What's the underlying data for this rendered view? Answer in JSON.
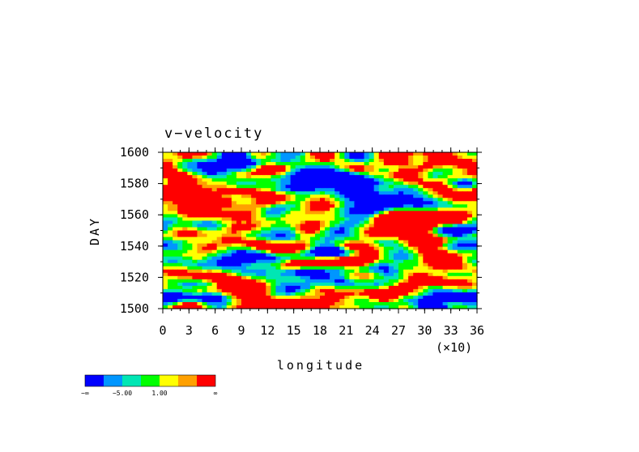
{
  "chart_data": {
    "type": "heatmap",
    "title": "v−velocity",
    "xlabel": "longitude",
    "x_scale_label": "(×10)",
    "ylabel": "DAY",
    "xlim": [
      0,
      36
    ],
    "ylim": [
      1500,
      1600
    ],
    "x_ticks": [
      "0",
      "3",
      "6",
      "9",
      "12",
      "15",
      "18",
      "21",
      "24",
      "27",
      "30",
      "33",
      "36"
    ],
    "y_ticks": [
      "1500",
      "1520",
      "1540",
      "1560",
      "1580",
      "1600"
    ],
    "colorbar": {
      "colors": [
        "#0000ff",
        "#0096ff",
        "#00e6b4",
        "#00ff00",
        "#ffff00",
        "#ffa000",
        "#ff0000"
      ],
      "labels": [
        "−∞",
        "−5.00",
        "1.00",
        "∞"
      ]
    },
    "field_class_fractions": [
      0.13,
      0.1,
      0.1,
      0.14,
      0.15,
      0.08,
      0.3
    ],
    "field_note_random_seed": 7
  }
}
